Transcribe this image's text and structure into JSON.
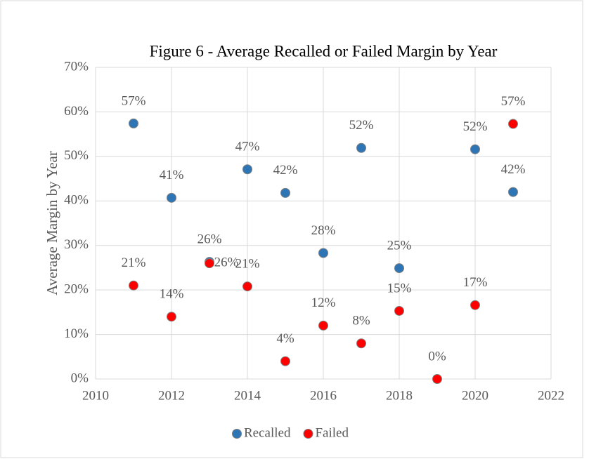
{
  "chart_data": {
    "type": "scatter",
    "title": "Figure 6 - Average Recalled or Failed Margin by Year",
    "y_label": "Average Margin by Year",
    "xlim": [
      2010,
      2022
    ],
    "xticks": [
      2010,
      2012,
      2014,
      2016,
      2018,
      2020,
      2022
    ],
    "ylim": [
      0,
      70
    ],
    "yticks": [
      {
        "value": 0,
        "label": "0%"
      },
      {
        "value": 10,
        "label": "10%"
      },
      {
        "value": 20,
        "label": "20%"
      },
      {
        "value": 30,
        "label": "30%"
      },
      {
        "value": 40,
        "label": "40%"
      },
      {
        "value": 50,
        "label": "50%"
      },
      {
        "value": 60,
        "label": "60%"
      },
      {
        "value": 70,
        "label": "70%"
      }
    ],
    "grid": true,
    "legend": "bottom",
    "series": [
      {
        "name": "Recalled",
        "color": "#2e75b6",
        "x": [
          2011,
          2012,
          2013,
          2014,
          2015,
          2016,
          2017,
          2018,
          2020,
          2021
        ],
        "values": [
          57.4,
          40.7,
          26.3,
          47.1,
          41.8,
          28.3,
          51.9,
          24.9,
          51.6,
          42.0
        ],
        "value_labels": [
          "57%",
          "41%",
          "26%",
          "47%",
          "42%",
          "28%",
          "52%",
          "25%",
          "52%",
          "42%"
        ]
      },
      {
        "name": "Failed",
        "color": "#ff0000",
        "x": [
          2011,
          2012,
          2013,
          2014,
          2015,
          2016,
          2017,
          2018,
          2019,
          2020,
          2021
        ],
        "values": [
          21.0,
          14.0,
          26.0,
          20.8,
          4.0,
          12.0,
          8.0,
          15.3,
          0,
          16.6,
          57.3
        ],
        "value_labels": [
          "21%",
          "14%",
          "26%",
          "21%",
          "4%",
          "12%",
          "8%",
          "15%",
          "0%",
          "17%",
          "57%"
        ]
      }
    ]
  }
}
